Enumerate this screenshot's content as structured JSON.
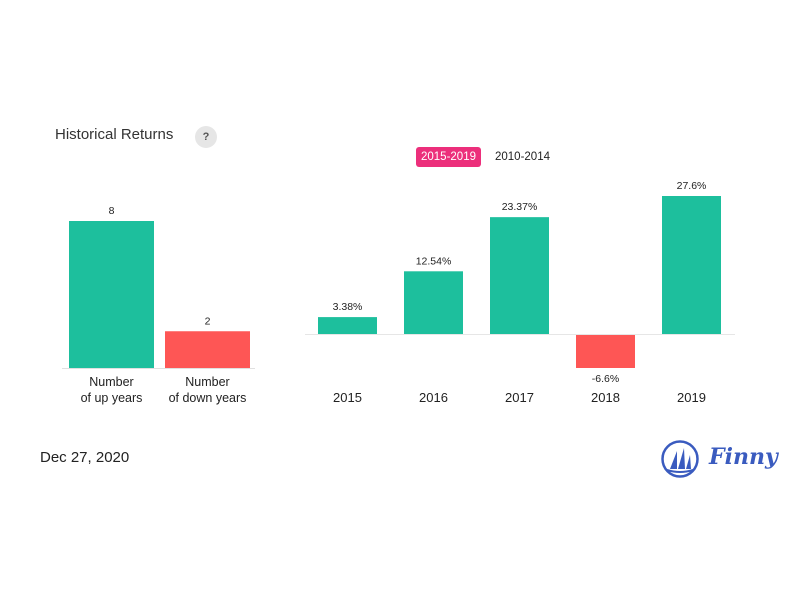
{
  "header": {
    "title": "Historical Returns",
    "help_label": "?"
  },
  "tabs": [
    {
      "label": "2015-2019",
      "active": true
    },
    {
      "label": "2010-2014",
      "active": false
    }
  ],
  "chart_data": [
    {
      "type": "bar",
      "categories": [
        [
          "Number",
          "of up years"
        ],
        [
          "Number",
          "of down years"
        ]
      ],
      "values": [
        8,
        2
      ],
      "data_labels": [
        "8",
        "2"
      ],
      "colors": [
        "#1dbf9d",
        "#fe5655"
      ],
      "ylim": [
        0,
        8
      ]
    },
    {
      "type": "bar",
      "categories": [
        "2015",
        "2016",
        "2017",
        "2018",
        "2019"
      ],
      "values": [
        3.38,
        12.54,
        23.37,
        -6.6,
        27.6
      ],
      "data_labels": [
        "3.38%",
        "12.54%",
        "23.37%",
        "-6.6%",
        "27.6%"
      ],
      "positive_color": "#1dbf9d",
      "negative_color": "#fe5655",
      "ylim": [
        -6.6,
        27.6
      ]
    }
  ],
  "footer": {
    "date": "Dec 27, 2020",
    "brand": "Finny",
    "logo_icon": "sailboat-logo-icon"
  }
}
